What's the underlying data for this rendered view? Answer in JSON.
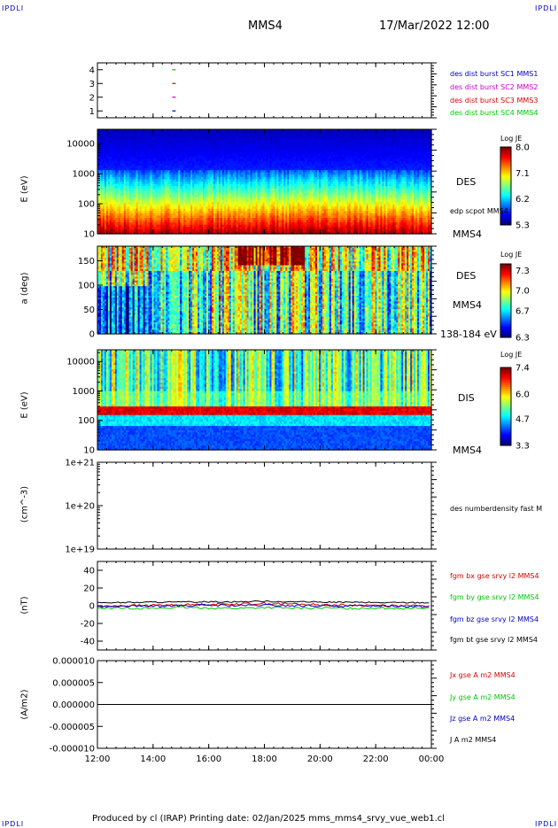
{
  "page": {
    "corner_tl": "IPDLI",
    "corner_tr": "IPDLI",
    "corner_bl": "IPDLI",
    "corner_br": "IPDLI",
    "title": "MMS4",
    "datetime": "17/Mar/2022 12:00",
    "footer": "Produced by cl (IRAP)   Printing date: 02/Jan/2025   mms_mms4_srvy_vue_web1.cl"
  },
  "colors": {
    "blue": "#0000c8",
    "magenta": "#c800c8",
    "red": "#dc0000",
    "green": "#00c800",
    "black": "#000000"
  },
  "chart_data": [
    {
      "type": "scatter",
      "id": "burst",
      "ylim": [
        0.5,
        4.5
      ],
      "yticks": [
        1,
        2,
        3,
        4
      ],
      "yticklabels": [
        "1",
        "2",
        "3",
        "4"
      ],
      "series": [
        {
          "name": "des dist burst SC1 MMS1",
          "color": "#0000c8",
          "y": 1,
          "x": [
            14.75
          ]
        },
        {
          "name": "des dist burst SC2 MMS2",
          "color": "#c800c8",
          "y": 2,
          "x": [
            14.75
          ]
        },
        {
          "name": "des dist burst SC3 MMS3",
          "color": "#dc0000",
          "y": 3,
          "x": [
            14.75
          ]
        },
        {
          "name": "des dist burst SC4 MMS4",
          "color": "#00c800",
          "y": 4,
          "x": [
            14.75
          ]
        }
      ]
    },
    {
      "type": "heatmap",
      "id": "des_energy",
      "ylabel": "E (eV)",
      "yscale": "log",
      "ylim": [
        10,
        30000
      ],
      "yticks": [
        10,
        100,
        1000,
        10000
      ],
      "yticklabels": [
        "10",
        "100",
        "1000",
        "10000"
      ],
      "side_labels": [
        "DES",
        "edp scpot MMS4",
        "MMS4"
      ],
      "colorbar": {
        "title": "Log JE",
        "range": [
          5.3,
          8.0
        ],
        "ticks": [
          8.0,
          7.1,
          6.2,
          5.3
        ],
        "ticklabels": [
          "8.0",
          "7.1",
          "6.2",
          "5.3"
        ]
      }
    },
    {
      "type": "heatmap",
      "id": "des_pitch",
      "ylabel": "a (deg)",
      "ylim": [
        0,
        180
      ],
      "yticks": [
        0,
        50,
        100,
        150
      ],
      "yticklabels": [
        "0",
        "50",
        "100",
        "150"
      ],
      "side_labels": [
        "DES",
        "MMS4",
        "138-184 eV"
      ],
      "colorbar": {
        "title": "Log JE",
        "range": [
          6.3,
          7.4
        ],
        "ticks": [
          7.3,
          7.0,
          6.7,
          6.3
        ],
        "ticklabels": [
          "7.3",
          "7.0",
          "6.7",
          "6.3"
        ]
      }
    },
    {
      "type": "heatmap",
      "id": "dis_energy",
      "ylabel": "E (eV)",
      "yscale": "log",
      "ylim": [
        10,
        25000
      ],
      "yticks": [
        10,
        100,
        1000,
        10000
      ],
      "yticklabels": [
        "10",
        "100",
        "1000",
        "10000"
      ],
      "side_labels": [
        "DIS",
        "MMS4"
      ],
      "colorbar": {
        "title": "Log JE",
        "range": [
          3.3,
          7.4
        ],
        "ticks": [
          7.4,
          6.0,
          4.7,
          3.3
        ],
        "ticklabels": [
          "7.4",
          "6.0",
          "4.7",
          "3.3"
        ]
      }
    },
    {
      "type": "line",
      "id": "density",
      "ylabel": "(cm^-3)",
      "yscale": "log",
      "ylim": [
        1e+19,
        1e+21
      ],
      "yticks": [
        1e+19,
        1e+20,
        1e+21
      ],
      "yticklabels": [
        "1e+19",
        "1e+20",
        "1e+21"
      ],
      "series": [
        {
          "name": "des numberdensity fast M",
          "color": "#000000",
          "x": [],
          "y": []
        }
      ]
    },
    {
      "type": "line",
      "id": "fgm",
      "ylabel": "(nT)",
      "ylim": [
        -50,
        50
      ],
      "yticks": [
        -40,
        -20,
        0,
        20,
        40
      ],
      "yticklabels": [
        "-40",
        "-20",
        "0",
        "20",
        "40"
      ],
      "series": [
        {
          "name": "fgm bx gse srvy l2 MMS4",
          "color": "#dc0000",
          "x": [
            12,
            13,
            14,
            15,
            16,
            17,
            18,
            19,
            20,
            21,
            22,
            23,
            24
          ],
          "y": [
            -1,
            0,
            0.5,
            1,
            1.5,
            2,
            2.5,
            2,
            1,
            0.5,
            0.5,
            0,
            -0.5
          ]
        },
        {
          "name": "fgm by gse srvy l2 MMS4",
          "color": "#00c800",
          "x": [
            12,
            13,
            14,
            15,
            16,
            17,
            18,
            19,
            20,
            21,
            22,
            23,
            24
          ],
          "y": [
            -3,
            -2.5,
            -3,
            -2,
            -2.5,
            -3,
            -2,
            -3,
            -2.5,
            -3,
            -2.5,
            -3,
            -2
          ]
        },
        {
          "name": "fgm bz gse srvy l2 MMS4",
          "color": "#0000c8",
          "x": [
            12,
            13,
            14,
            15,
            16,
            17,
            18,
            19,
            20,
            21,
            22,
            23,
            24
          ],
          "y": [
            -1,
            -0.5,
            -0.5,
            0,
            0.5,
            0,
            0.5,
            0,
            0,
            -0.5,
            0,
            -0.5,
            -1
          ]
        },
        {
          "name": "fgm bt gse srvy l2 MMS4",
          "color": "#000000",
          "x": [
            12,
            13,
            14,
            15,
            16,
            17,
            18,
            19,
            20,
            21,
            22,
            23,
            24
          ],
          "y": [
            3.5,
            3.5,
            4,
            4,
            4.5,
            4.5,
            5,
            4.5,
            4,
            4,
            3.5,
            3.5,
            3.5
          ]
        }
      ]
    },
    {
      "type": "line",
      "id": "current",
      "ylabel": "(A/m2)",
      "ylim": [
        -1e-05,
        1e-05
      ],
      "yticks": [
        1e-05,
        5e-06,
        0,
        -5e-06,
        -1e-05
      ],
      "yticklabels": [
        "0.000010",
        "0.000005",
        "0.000000",
        "-0.000005",
        "-0.000010"
      ],
      "xlim": [
        12,
        24
      ],
      "xticks": [
        12,
        14,
        16,
        18,
        20,
        22,
        24
      ],
      "xticklabels": [
        "12:00",
        "14:00",
        "16:00",
        "18:00",
        "20:00",
        "22:00",
        "00:00"
      ],
      "series": [
        {
          "name": "Jx gse A m2 MMS4",
          "color": "#dc0000",
          "x": [
            12,
            24
          ],
          "y": [
            0,
            0
          ]
        },
        {
          "name": "Jy gse A m2 MMS4",
          "color": "#00c800",
          "x": [
            12,
            24
          ],
          "y": [
            0,
            0
          ]
        },
        {
          "name": "Jz gse A m2 MMS4",
          "color": "#0000c8",
          "x": [
            12,
            24
          ],
          "y": [
            0,
            0
          ]
        },
        {
          "name": "J A m2 MMS4",
          "color": "#000000",
          "x": [
            12,
            24
          ],
          "y": [
            0,
            0
          ]
        }
      ]
    }
  ]
}
